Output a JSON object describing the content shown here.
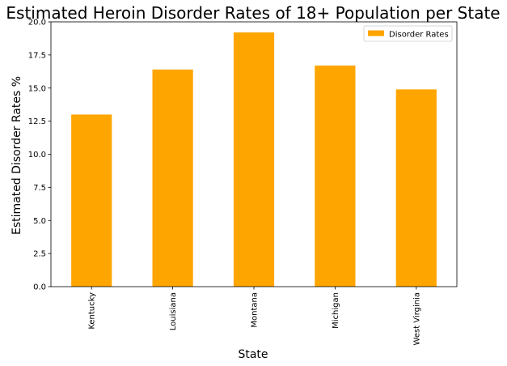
{
  "chart_data": {
    "type": "bar",
    "title": "Estimated Heroin Disorder Rates of 18+ Population per State",
    "xlabel": "State",
    "ylabel": "Estimated Disorder Rates %",
    "categories": [
      "Kentucky",
      "Louisiana",
      "Montana",
      "Michigan",
      "West Virginia"
    ],
    "series": [
      {
        "name": "Disorder Rates",
        "values": [
          13.0,
          16.4,
          19.2,
          16.7,
          14.9
        ]
      }
    ],
    "ylim": [
      0,
      20.0
    ],
    "yticks": [
      "0.0",
      "2.5",
      "5.0",
      "7.5",
      "10.0",
      "12.5",
      "15.0",
      "17.5",
      "20.0"
    ],
    "grid": false,
    "legend": "top-right",
    "bar_color": "#ffa500"
  }
}
